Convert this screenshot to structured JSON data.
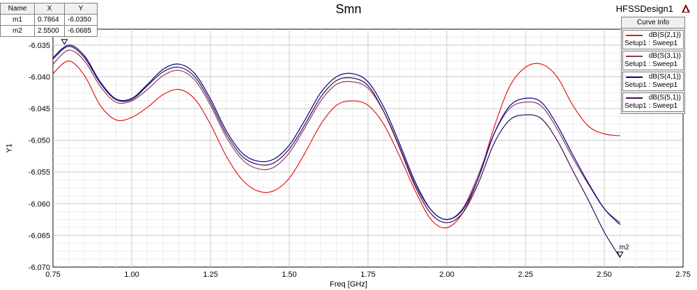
{
  "header": {
    "title": "Smn",
    "design": "HFSSDesign1",
    "logo_text": "ANSOFT"
  },
  "marker_table": {
    "columns": [
      "Name",
      "X",
      "Y"
    ],
    "rows": [
      [
        "m1",
        "0.7864",
        "-6.0350"
      ],
      [
        "m2",
        "2.5500",
        "-6.0685"
      ]
    ]
  },
  "legend": {
    "title": "Curve Info",
    "items": [
      {
        "label": "dB(S(2,1))",
        "setup": "Setup1 : Sweep1",
        "color": "#e31a1c"
      },
      {
        "label": "dB(S(3,1))",
        "setup": "Setup1 : Sweep1",
        "color": "#8b3a62"
      },
      {
        "label": "dB(S(4,1))",
        "setup": "Setup1 : Sweep1",
        "color": "#00008b"
      },
      {
        "label": "dB(S(5,1))",
        "setup": "Setup1 : Sweep1",
        "color": "#3d0a4f"
      }
    ]
  },
  "chart_data": {
    "type": "line",
    "title": "Smn",
    "xlabel": "Freq [GHz]",
    "ylabel": "Y1",
    "xlim": [
      0.75,
      2.75
    ],
    "ylim": [
      -6.07,
      -6.0325
    ],
    "xticks": [
      "0.75",
      "1.00",
      "1.25",
      "1.50",
      "1.75",
      "2.00",
      "2.25",
      "2.50",
      "2.75"
    ],
    "yticks": [
      "-6.035",
      "-6.040",
      "-6.045",
      "-6.050",
      "-6.055",
      "-6.060",
      "-6.065",
      "-6.070"
    ],
    "grid": true,
    "legend_position": "top-right",
    "x": [
      0.75,
      0.8,
      0.85,
      0.9,
      0.95,
      1.0,
      1.05,
      1.1,
      1.15,
      1.2,
      1.25,
      1.3,
      1.35,
      1.4,
      1.45,
      1.5,
      1.55,
      1.6,
      1.65,
      1.7,
      1.75,
      1.8,
      1.85,
      1.9,
      1.95,
      2.0,
      2.05,
      2.1,
      2.15,
      2.2,
      2.25,
      2.3,
      2.35,
      2.4,
      2.45,
      2.5,
      2.55
    ],
    "series": [
      {
        "name": "dB(S(2,1))",
        "color": "#e31a1c",
        "values": [
          -6.0395,
          -6.0375,
          -6.0398,
          -6.0445,
          -6.0468,
          -6.0464,
          -6.0448,
          -6.0428,
          -6.042,
          -6.0435,
          -6.0475,
          -6.0525,
          -6.0562,
          -6.058,
          -6.058,
          -6.056,
          -6.052,
          -6.0475,
          -6.0445,
          -6.0438,
          -6.0445,
          -6.0475,
          -6.0525,
          -6.058,
          -6.0625,
          -6.0638,
          -6.0615,
          -6.056,
          -6.048,
          -6.0415,
          -6.0385,
          -6.038,
          -6.04,
          -6.0445,
          -6.0478,
          -6.049,
          -6.0493
        ]
      },
      {
        "name": "dB(S(3,1))",
        "color": "#8b3a62",
        "values": [
          -6.038,
          -6.0358,
          -6.0375,
          -6.0415,
          -6.044,
          -6.0438,
          -6.042,
          -6.0398,
          -6.039,
          -6.0405,
          -6.0445,
          -6.0495,
          -6.053,
          -6.0545,
          -6.0543,
          -6.052,
          -6.048,
          -6.0438,
          -6.0412,
          -6.0408,
          -6.0418,
          -6.0455,
          -6.051,
          -6.057,
          -6.061,
          -6.0625,
          -6.0608,
          -6.0555,
          -6.049,
          -6.045,
          -6.044,
          -6.0446,
          -6.0482,
          -6.0528,
          -6.057,
          -6.0608,
          -6.063
        ]
      },
      {
        "name": "dB(S(4,1))",
        "color": "#00008b",
        "values": [
          -6.037,
          -6.035,
          -6.0367,
          -6.0408,
          -6.0435,
          -6.0434,
          -6.0412,
          -6.0388,
          -6.038,
          -6.0395,
          -6.0435,
          -6.0485,
          -6.052,
          -6.0533,
          -6.053,
          -6.0508,
          -6.0468,
          -6.0425,
          -6.04,
          -6.0395,
          -6.0408,
          -6.0448,
          -6.0505,
          -6.0566,
          -6.061,
          -6.0625,
          -6.061,
          -6.056,
          -6.049,
          -6.0446,
          -6.0434,
          -6.044,
          -6.0476,
          -6.0523,
          -6.0568,
          -6.0608,
          -6.0633
        ]
      },
      {
        "name": "dB(S(5,1))",
        "color": "#3d0a4f",
        "values": [
          -6.0372,
          -6.0352,
          -6.037,
          -6.041,
          -6.0436,
          -6.0436,
          -6.0414,
          -6.0392,
          -6.0385,
          -6.04,
          -6.044,
          -6.049,
          -6.0525,
          -6.0538,
          -6.0536,
          -6.0514,
          -6.0475,
          -6.0432,
          -6.0406,
          -6.0402,
          -6.0414,
          -6.0455,
          -6.0512,
          -6.0573,
          -6.0616,
          -6.063,
          -6.0615,
          -6.0568,
          -6.0505,
          -6.0468,
          -6.046,
          -6.0466,
          -6.05,
          -6.0548,
          -6.0595,
          -6.0645,
          -6.0685
        ]
      }
    ],
    "markers": [
      {
        "name": "m1",
        "x": 0.7864,
        "y": -6.035
      },
      {
        "name": "m2",
        "x": 2.55,
        "y": -6.0685
      }
    ]
  }
}
